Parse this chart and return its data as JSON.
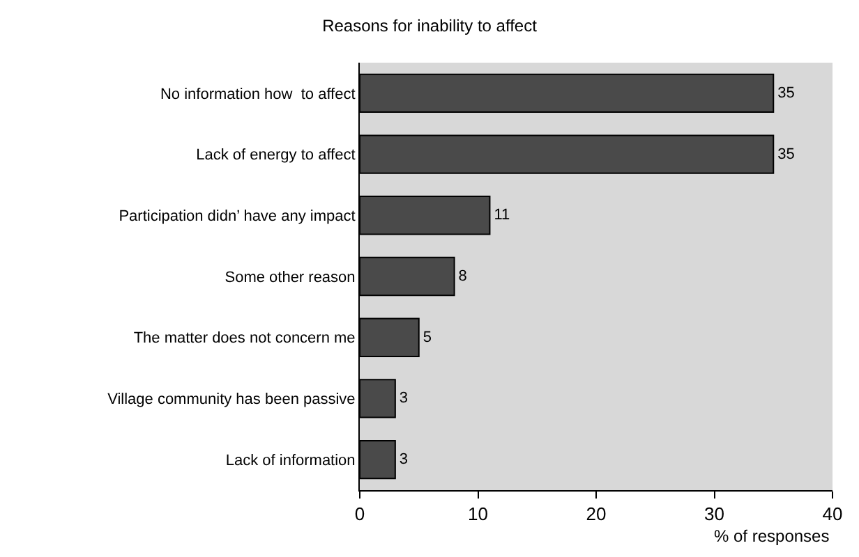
{
  "chart_data": {
    "type": "bar",
    "orientation": "horizontal",
    "title": "Reasons for inability to affect",
    "xlabel": "% of responses",
    "categories": [
      "No information how  to affect",
      "Lack of energy to affect",
      "Participation didn’ have any impact",
      "Some other reason",
      "The matter does not concern me",
      "Village community has been passive",
      "Lack of information"
    ],
    "values": [
      35,
      35,
      11,
      8,
      5,
      3,
      3
    ],
    "color": "#4a4a4a",
    "xlim": [
      0,
      40
    ],
    "xticks": [
      0,
      10,
      20,
      30,
      40
    ],
    "grid": false,
    "data_labels": true
  }
}
